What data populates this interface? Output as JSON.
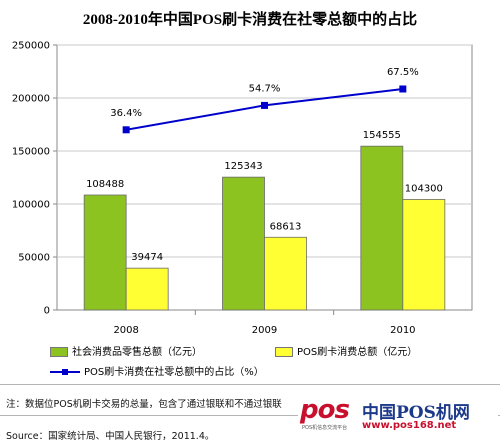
{
  "chart_data": {
    "type": "bar",
    "title": "2008-2010年中国POS刷卡消费在社零总额中的占比",
    "categories": [
      "2008",
      "2009",
      "2010"
    ],
    "series": [
      {
        "name": "社会消费品零售总额（亿元）",
        "color": "#8cc320",
        "values": [
          108488,
          125343,
          154555
        ],
        "labels": [
          "108488",
          "125343",
          "154555"
        ]
      },
      {
        "name": "POS刷卡消费总额（亿元）",
        "color": "#ffff33",
        "values": [
          39474,
          68613,
          104300
        ],
        "labels": [
          "39474",
          "68613",
          "104300"
        ]
      }
    ],
    "line_series": {
      "name": "POS刷卡消费在社零总额中的占比（%）",
      "color": "#0000cc",
      "values": [
        36.4,
        54.7,
        67.5
      ],
      "labels": [
        "36.4%",
        "54.7%",
        "67.5%"
      ],
      "plotted_as": [
        170000,
        193000,
        208500
      ]
    },
    "yticks": [
      "0",
      "50000",
      "100000",
      "150000",
      "200000",
      "250000"
    ],
    "ylim": [
      0,
      250000
    ],
    "grid": true,
    "legend_position": "bottom"
  },
  "note": "注：数据位POS机刷卡交易的总量，包含了通过银联和不通过银联",
  "source": "Source：国家统计局、中国人民银行，2011.4。",
  "watermark": {
    "brand": "pos",
    "name": "中国POS机网",
    "tagline": "POS机信息交流平台",
    "url": "www.pos168.net"
  }
}
